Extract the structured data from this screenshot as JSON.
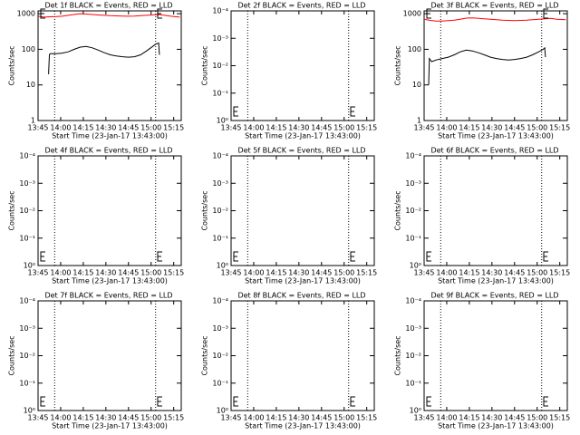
{
  "chart_data": [
    {
      "type": "line",
      "log_y": true,
      "title": "Det 1f BLACK = Events, RED = LLD",
      "xlabel": "Start Time (23-Jan-17 13:43:00)",
      "ylabel": "Counts/sec",
      "xlim": [
        2,
        97
      ],
      "xticks": [
        {
          "value": 2,
          "label": "13:45"
        },
        {
          "value": 17,
          "label": "14:00"
        },
        {
          "value": 32,
          "label": "14:15"
        },
        {
          "value": 47,
          "label": "14:30"
        },
        {
          "value": 62,
          "label": "14:45"
        },
        {
          "value": 77,
          "label": "15:00"
        },
        {
          "value": 92,
          "label": "15:15"
        }
      ],
      "ylim": [
        1,
        1200
      ],
      "yticks": [
        1,
        10,
        100,
        1000
      ],
      "vlines": [
        13,
        80
      ],
      "series": [
        {
          "color": "#000000",
          "x": [
            9,
            9.5,
            10,
            14,
            18,
            22,
            26,
            30,
            34,
            38,
            42,
            46,
            50,
            54,
            58,
            62,
            66,
            70,
            74,
            78,
            80,
            82,
            82.5
          ],
          "values": [
            20,
            70,
            75,
            75,
            78,
            85,
            100,
            115,
            120,
            110,
            95,
            80,
            70,
            65,
            62,
            60,
            62,
            70,
            90,
            120,
            140,
            150,
            70
          ]
        },
        {
          "color": "#ff0000",
          "x": [
            2,
            6,
            10,
            14,
            18,
            22,
            26,
            30,
            34,
            38,
            42,
            46,
            50,
            54,
            58,
            62,
            66,
            70,
            74,
            78,
            82,
            86,
            90,
            96
          ],
          "values": [
            850,
            800,
            820,
            830,
            850,
            900,
            950,
            1000,
            980,
            950,
            920,
            900,
            880,
            870,
            860,
            850,
            860,
            880,
            900,
            920,
            950,
            900,
            850,
            800
          ]
        }
      ]
    },
    {
      "type": "line",
      "log_y": true,
      "title": "Det 2f BLACK = Events, RED = LLD",
      "xlabel": "Start Time (23-Jan-17 13:43:00)",
      "ylabel": "Counts/sec",
      "xlim": [
        2,
        97
      ],
      "xticks": [
        {
          "value": 2,
          "label": "13:45"
        },
        {
          "value": 17,
          "label": "14:00"
        },
        {
          "value": 32,
          "label": "14:15"
        },
        {
          "value": 47,
          "label": "14:30"
        },
        {
          "value": 62,
          "label": "14:45"
        },
        {
          "value": 77,
          "label": "15:00"
        },
        {
          "value": 92,
          "label": "15:15"
        }
      ],
      "ylim": [
        1,
        0.0001
      ],
      "yticks": [
        {
          "value": 0.0001,
          "label": "10⁻⁴"
        },
        {
          "value": 0.001,
          "label": "10⁻³"
        },
        {
          "value": 0.01,
          "label": "10⁻²"
        },
        {
          "value": 0.1,
          "label": "10⁻¹"
        },
        {
          "value": 1,
          "label": "10⁰"
        }
      ],
      "vlines": [
        13,
        80
      ],
      "series": []
    },
    {
      "type": "line",
      "log_y": true,
      "title": "Det 3f BLACK = Events, RED = LLD",
      "xlabel": "Start Time (23-Jan-17 13:43:00)",
      "ylabel": "Counts/sec",
      "xlim": [
        2,
        97
      ],
      "xticks": [
        {
          "value": 2,
          "label": "13:45"
        },
        {
          "value": 17,
          "label": "14:00"
        },
        {
          "value": 32,
          "label": "14:15"
        },
        {
          "value": 47,
          "label": "14:30"
        },
        {
          "value": 62,
          "label": "14:45"
        },
        {
          "value": 77,
          "label": "15:00"
        },
        {
          "value": 92,
          "label": "15:15"
        }
      ],
      "ylim": [
        1,
        1200
      ],
      "yticks": [
        1,
        10,
        100,
        1000
      ],
      "vlines": [
        13,
        80
      ],
      "series": [
        {
          "color": "#000000",
          "x": [
            5,
            5.5,
            7,
            10,
            14,
            18,
            22,
            26,
            30,
            34,
            38,
            42,
            46,
            50,
            54,
            58,
            62,
            66,
            70,
            74,
            78,
            81,
            82,
            82.5
          ],
          "values": [
            10,
            55,
            45,
            50,
            55,
            60,
            70,
            85,
            95,
            90,
            80,
            70,
            60,
            55,
            52,
            50,
            52,
            55,
            60,
            70,
            85,
            100,
            110,
            60
          ]
        },
        {
          "color": "#ff0000",
          "x": [
            2,
            6,
            10,
            14,
            18,
            22,
            26,
            30,
            34,
            38,
            42,
            46,
            50,
            54,
            58,
            62,
            66,
            70,
            74,
            78,
            82,
            86,
            90,
            96
          ],
          "values": [
            700,
            650,
            620,
            620,
            640,
            660,
            700,
            750,
            760,
            740,
            720,
            700,
            680,
            660,
            650,
            640,
            650,
            660,
            680,
            700,
            720,
            740,
            700,
            680
          ]
        }
      ]
    },
    {
      "type": "line",
      "log_y": true,
      "title": "Det 4f BLACK = Events, RED = LLD",
      "xlabel": "Start Time (23-Jan-17 13:43:00)",
      "ylabel": "Counts/sec",
      "xlim": [
        2,
        97
      ],
      "xticks": [
        {
          "value": 2,
          "label": "13:45"
        },
        {
          "value": 17,
          "label": "14:00"
        },
        {
          "value": 32,
          "label": "14:15"
        },
        {
          "value": 47,
          "label": "14:30"
        },
        {
          "value": 62,
          "label": "14:45"
        },
        {
          "value": 77,
          "label": "15:00"
        },
        {
          "value": 92,
          "label": "15:15"
        }
      ],
      "ylim": [
        1,
        0.0001
      ],
      "yticks": [
        {
          "value": 0.0001,
          "label": "10⁻⁴"
        },
        {
          "value": 0.001,
          "label": "10⁻³"
        },
        {
          "value": 0.01,
          "label": "10⁻²"
        },
        {
          "value": 0.1,
          "label": "10⁻¹"
        },
        {
          "value": 1,
          "label": "10⁰"
        }
      ],
      "vlines": [
        13,
        80
      ],
      "series": []
    },
    {
      "type": "line",
      "log_y": true,
      "title": "Det 5f BLACK = Events, RED = LLD",
      "xlabel": "Start Time (23-Jan-17 13:43:00)",
      "ylabel": "Counts/sec",
      "xlim": [
        2,
        97
      ],
      "xticks": [
        {
          "value": 2,
          "label": "13:45"
        },
        {
          "value": 17,
          "label": "14:00"
        },
        {
          "value": 32,
          "label": "14:15"
        },
        {
          "value": 47,
          "label": "14:30"
        },
        {
          "value": 62,
          "label": "14:45"
        },
        {
          "value": 77,
          "label": "15:00"
        },
        {
          "value": 92,
          "label": "15:15"
        }
      ],
      "ylim": [
        1,
        0.0001
      ],
      "yticks": [
        {
          "value": 0.0001,
          "label": "10⁻⁴"
        },
        {
          "value": 0.001,
          "label": "10⁻³"
        },
        {
          "value": 0.01,
          "label": "10⁻²"
        },
        {
          "value": 0.1,
          "label": "10⁻¹"
        },
        {
          "value": 1,
          "label": "10⁰"
        }
      ],
      "vlines": [
        13,
        80
      ],
      "series": []
    },
    {
      "type": "line",
      "log_y": true,
      "title": "Det 6f BLACK = Events, RED = LLD",
      "xlabel": "Start Time (23-Jan-17 13:43:00)",
      "ylabel": "Counts/sec",
      "xlim": [
        2,
        97
      ],
      "xticks": [
        {
          "value": 2,
          "label": "13:45"
        },
        {
          "value": 17,
          "label": "14:00"
        },
        {
          "value": 32,
          "label": "14:15"
        },
        {
          "value": 47,
          "label": "14:30"
        },
        {
          "value": 62,
          "label": "14:45"
        },
        {
          "value": 77,
          "label": "15:00"
        },
        {
          "value": 92,
          "label": "15:15"
        }
      ],
      "ylim": [
        1,
        0.0001
      ],
      "yticks": [
        {
          "value": 0.0001,
          "label": "10⁻⁴"
        },
        {
          "value": 0.001,
          "label": "10⁻³"
        },
        {
          "value": 0.01,
          "label": "10⁻²"
        },
        {
          "value": 0.1,
          "label": "10⁻¹"
        },
        {
          "value": 1,
          "label": "10⁰"
        }
      ],
      "vlines": [
        13,
        80
      ],
      "series": []
    },
    {
      "type": "line",
      "log_y": true,
      "title": "Det 7f BLACK = Events, RED = LLD",
      "xlabel": "Start Time (23-Jan-17 13:43:00)",
      "ylabel": "Counts/sec",
      "xlim": [
        2,
        97
      ],
      "xticks": [
        {
          "value": 2,
          "label": "13:45"
        },
        {
          "value": 17,
          "label": "14:00"
        },
        {
          "value": 32,
          "label": "14:15"
        },
        {
          "value": 47,
          "label": "14:30"
        },
        {
          "value": 62,
          "label": "14:45"
        },
        {
          "value": 77,
          "label": "15:00"
        },
        {
          "value": 92,
          "label": "15:15"
        }
      ],
      "ylim": [
        1,
        0.0001
      ],
      "yticks": [
        {
          "value": 0.0001,
          "label": "10⁻⁴"
        },
        {
          "value": 0.001,
          "label": "10⁻³"
        },
        {
          "value": 0.01,
          "label": "10⁻²"
        },
        {
          "value": 0.1,
          "label": "10⁻¹"
        },
        {
          "value": 1,
          "label": "10⁰"
        }
      ],
      "vlines": [
        13,
        80
      ],
      "series": []
    },
    {
      "type": "line",
      "log_y": true,
      "title": "Det 8f BLACK = Events, RED = LLD",
      "xlabel": "Start Time (23-Jan-17 13:43:00)",
      "ylabel": "Counts/sec",
      "xlim": [
        2,
        97
      ],
      "xticks": [
        {
          "value": 2,
          "label": "13:45"
        },
        {
          "value": 17,
          "label": "14:00"
        },
        {
          "value": 32,
          "label": "14:15"
        },
        {
          "value": 47,
          "label": "14:30"
        },
        {
          "value": 62,
          "label": "14:45"
        },
        {
          "value": 77,
          "label": "15:00"
        },
        {
          "value": 92,
          "label": "15:15"
        }
      ],
      "ylim": [
        1,
        0.0001
      ],
      "yticks": [
        {
          "value": 0.0001,
          "label": "10⁻⁴"
        },
        {
          "value": 0.001,
          "label": "10⁻³"
        },
        {
          "value": 0.01,
          "label": "10⁻²"
        },
        {
          "value": 0.1,
          "label": "10⁻¹"
        },
        {
          "value": 1,
          "label": "10⁰"
        }
      ],
      "vlines": [
        13,
        80
      ],
      "series": []
    },
    {
      "type": "line",
      "log_y": true,
      "title": "Det 9f BLACK = Events, RED = LLD",
      "xlabel": "Start Time (23-Jan-17 13:43:00)",
      "ylabel": "Counts/sec",
      "xlim": [
        2,
        97
      ],
      "xticks": [
        {
          "value": 2,
          "label": "13:45"
        },
        {
          "value": 17,
          "label": "14:00"
        },
        {
          "value": 32,
          "label": "14:15"
        },
        {
          "value": 47,
          "label": "14:30"
        },
        {
          "value": 62,
          "label": "14:45"
        },
        {
          "value": 77,
          "label": "15:00"
        },
        {
          "value": 92,
          "label": "15:15"
        }
      ],
      "ylim": [
        1,
        0.0001
      ],
      "yticks": [
        {
          "value": 0.0001,
          "label": "10⁻⁴"
        },
        {
          "value": 0.001,
          "label": "10⁻³"
        },
        {
          "value": 0.01,
          "label": "10⁻²"
        },
        {
          "value": 0.1,
          "label": "10⁻¹"
        },
        {
          "value": 1,
          "label": "10⁰"
        }
      ],
      "vlines": [
        13,
        80
      ],
      "series": []
    }
  ]
}
